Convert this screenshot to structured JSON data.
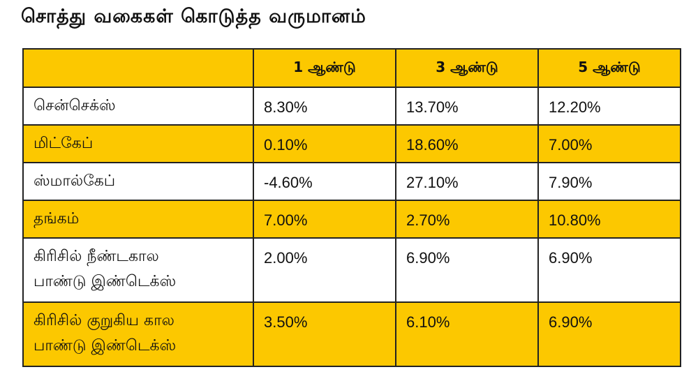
{
  "title": "சொத்து வகைகள் கொடுத்த வருமானம்",
  "colors": {
    "highlight_row": "#fcc800",
    "plain_row": "#ffffff",
    "border": "#222222"
  },
  "table": {
    "corner": "",
    "headers": [
      "1 ஆண்டு",
      "3 ஆண்டு",
      "5 ஆண்டு"
    ],
    "rows": [
      {
        "asset": "சென்செக்ஸ்",
        "values": [
          "8.30%",
          "13.70%",
          "12.20%"
        ]
      },
      {
        "asset": "மிட்கேப்",
        "values": [
          "0.10%",
          "18.60%",
          "7.00%"
        ]
      },
      {
        "asset": "ஸ்மால்கேப்",
        "values": [
          "-4.60%",
          "27.10%",
          "7.90%"
        ]
      },
      {
        "asset": "தங்கம்",
        "values": [
          "7.00%",
          "2.70%",
          "10.80%"
        ]
      },
      {
        "asset_lines": [
          "கிரிசில் நீண்டகால",
          "பாண்டு இண்டெக்ஸ்"
        ],
        "values": [
          "2.00%",
          "6.90%",
          "6.90%"
        ]
      },
      {
        "asset_lines": [
          "கிரிசில் குறுகிய கால",
          "பாண்டு இண்டெக்ஸ்"
        ],
        "values": [
          "3.50%",
          "6.10%",
          "6.90%"
        ]
      }
    ]
  }
}
